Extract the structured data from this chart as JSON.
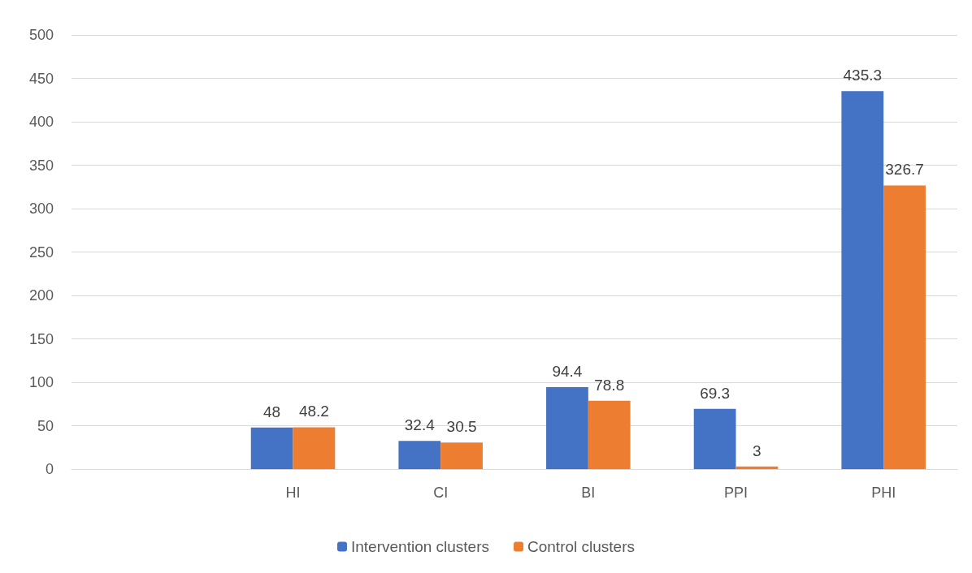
{
  "chart_data": {
    "type": "bar",
    "categories": [
      null,
      "HI",
      "CI",
      "BI",
      "PPI",
      "PHI"
    ],
    "series": [
      {
        "name": "Intervention clusters",
        "color": "#4472c4",
        "values": [
          null,
          48,
          32.4,
          94.4,
          69.3,
          435.3
        ]
      },
      {
        "name": "Control clusters",
        "color": "#ed7d31",
        "values": [
          null,
          48.2,
          30.5,
          78.8,
          3,
          326.7
        ]
      }
    ],
    "ylim": [
      0,
      500
    ],
    "yticks": [
      0,
      50,
      100,
      150,
      200,
      250,
      300,
      350,
      400,
      450,
      500
    ],
    "grid": "y",
    "legend": "bottom",
    "data_labels": true
  }
}
